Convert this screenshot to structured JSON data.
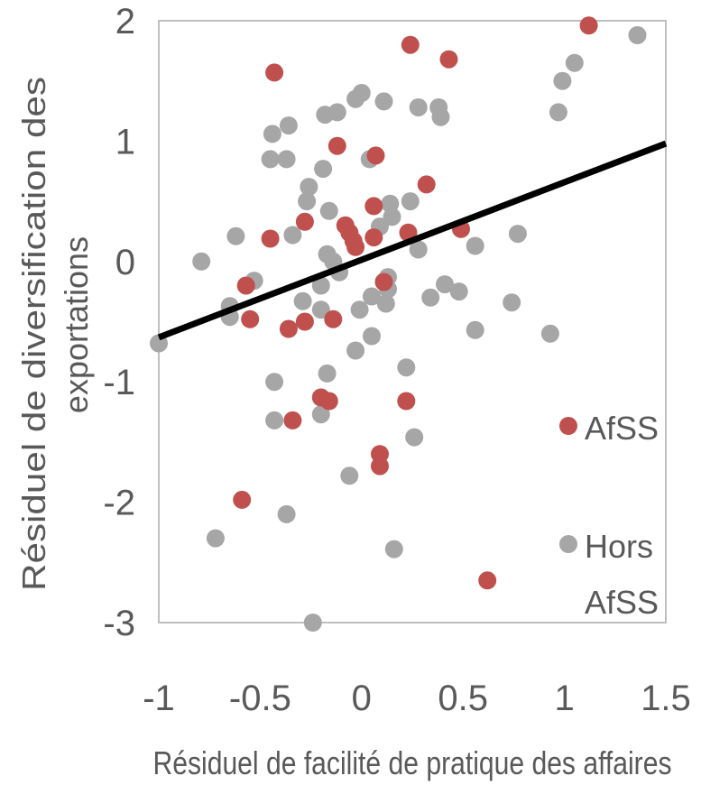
{
  "chart_data": {
    "type": "scatter",
    "xlabel": "Résiduel de facilité de pratique des affaires",
    "ylabel_lines": [
      "Résiduel de diversification des",
      "exportations"
    ],
    "xlim": [
      -1,
      1.5
    ],
    "ylim": [
      -3,
      2
    ],
    "x_ticks": [
      "-1",
      "-0.5",
      "0",
      "0.5",
      "1",
      "1.5"
    ],
    "y_ticks": [
      "2",
      "1",
      "0",
      "-1",
      "-2",
      "-3"
    ],
    "colors": {
      "afss": "#c0504d",
      "hors": "#a6a6a6",
      "trend": "#000000",
      "frame": "#bfbfbf"
    },
    "trendline": {
      "x": [
        -1,
        1.5
      ],
      "y": [
        -0.63,
        0.98
      ]
    },
    "legend": {
      "placement": "bottom-right",
      "afss_label": "AfSS",
      "hors_label_lines": [
        "Hors",
        "AfSS"
      ]
    },
    "series": [
      {
        "name": "AfSS",
        "color": "#c0504d",
        "points": [
          [
            1.12,
            1.96
          ],
          [
            0.24,
            1.8
          ],
          [
            0.43,
            1.68
          ],
          [
            -0.43,
            1.57
          ],
          [
            -0.12,
            0.96
          ],
          [
            0.07,
            0.88
          ],
          [
            0.32,
            0.64
          ],
          [
            0.06,
            0.46
          ],
          [
            -0.28,
            0.33
          ],
          [
            -0.08,
            0.3
          ],
          [
            -0.06,
            0.24
          ],
          [
            -0.04,
            0.17
          ],
          [
            -0.45,
            0.19
          ],
          [
            -0.03,
            0.12
          ],
          [
            0.06,
            0.2
          ],
          [
            0.23,
            0.24
          ],
          [
            0.49,
            0.27
          ],
          [
            -0.57,
            -0.2
          ],
          [
            0.11,
            -0.17
          ],
          [
            -0.55,
            -0.48
          ],
          [
            -0.36,
            -0.56
          ],
          [
            -0.28,
            -0.5
          ],
          [
            -0.14,
            -0.48
          ],
          [
            -0.2,
            -1.13
          ],
          [
            -0.16,
            -1.16
          ],
          [
            0.22,
            -1.16
          ],
          [
            -0.34,
            -1.32
          ],
          [
            0.09,
            -1.6
          ],
          [
            0.09,
            -1.7
          ],
          [
            -0.59,
            -1.98
          ],
          [
            0.62,
            -2.65
          ]
        ]
      },
      {
        "name": "Hors AfSS",
        "color": "#a6a6a6",
        "points": [
          [
            1.36,
            1.88
          ],
          [
            1.05,
            1.65
          ],
          [
            0.99,
            1.5
          ],
          [
            0.97,
            1.24
          ],
          [
            0.0,
            1.4
          ],
          [
            -0.03,
            1.35
          ],
          [
            0.11,
            1.33
          ],
          [
            0.28,
            1.28
          ],
          [
            0.38,
            1.28
          ],
          [
            0.39,
            1.2
          ],
          [
            -0.18,
            1.22
          ],
          [
            -0.12,
            1.24
          ],
          [
            -0.44,
            1.06
          ],
          [
            -0.36,
            1.13
          ],
          [
            -0.45,
            0.85
          ],
          [
            -0.37,
            0.85
          ],
          [
            -0.19,
            0.77
          ],
          [
            0.04,
            0.85
          ],
          [
            -0.26,
            0.62
          ],
          [
            -0.27,
            0.5
          ],
          [
            -0.16,
            0.42
          ],
          [
            0.14,
            0.48
          ],
          [
            0.24,
            0.5
          ],
          [
            0.15,
            0.37
          ],
          [
            0.09,
            0.29
          ],
          [
            -0.62,
            0.21
          ],
          [
            -0.34,
            0.22
          ],
          [
            0.77,
            0.23
          ],
          [
            0.56,
            0.13
          ],
          [
            0.28,
            0.1
          ],
          [
            -0.17,
            0.06
          ],
          [
            -0.79,
            0.0
          ],
          [
            -0.14,
            0.0
          ],
          [
            -0.11,
            -0.09
          ],
          [
            -0.53,
            -0.16
          ],
          [
            -0.2,
            -0.2
          ],
          [
            0.13,
            -0.13
          ],
          [
            0.13,
            -0.23
          ],
          [
            0.12,
            -0.35
          ],
          [
            0.05,
            -0.29
          ],
          [
            0.34,
            -0.3
          ],
          [
            0.41,
            -0.19
          ],
          [
            0.48,
            -0.25
          ],
          [
            0.74,
            -0.34
          ],
          [
            -0.29,
            -0.33
          ],
          [
            -0.65,
            -0.37
          ],
          [
            -0.65,
            -0.46
          ],
          [
            -0.2,
            -0.4
          ],
          [
            -0.01,
            -0.4
          ],
          [
            0.05,
            -0.62
          ],
          [
            0.56,
            -0.57
          ],
          [
            0.93,
            -0.6
          ],
          [
            -1.0,
            -0.68
          ],
          [
            -0.03,
            -0.74
          ],
          [
            -0.17,
            -0.93
          ],
          [
            0.22,
            -0.88
          ],
          [
            -0.43,
            -1.0
          ],
          [
            -0.43,
            -1.32
          ],
          [
            -0.2,
            -1.27
          ],
          [
            0.26,
            -1.46
          ],
          [
            -0.06,
            -1.78
          ],
          [
            -0.37,
            -2.1
          ],
          [
            -0.72,
            -2.3
          ],
          [
            0.16,
            -2.39
          ],
          [
            -0.24,
            -3.0
          ]
        ]
      }
    ]
  }
}
